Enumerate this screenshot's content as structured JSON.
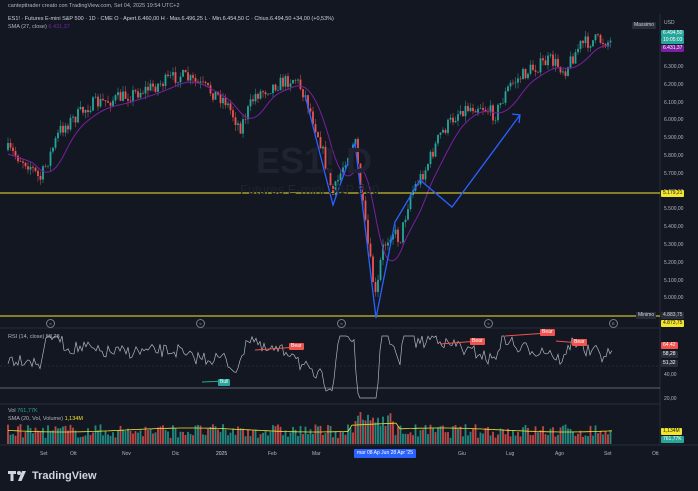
{
  "header": {
    "title": "cantepttrader creato con TradingView.com, Set 04, 2025 19:54 UTC+2",
    "symbol_line": "ES1! · Futures E-mini S&P 500 · 1D · CME  O · Apert.6.460,00  H · Mas.6.496,25  L · Min.6.454,50  C · Chius.6.494,50  +34,00 (+0,53%)",
    "sma_label": "SMA (27, close)",
    "sma_value": "6.431,37"
  },
  "watermark": {
    "symbol": "ES1! D",
    "name": "Futures E-mini S&P 500"
  },
  "price_axis": {
    "currency": "USD",
    "ticks": [
      "6.300,00",
      "6.200,00",
      "6.100,00",
      "6.000,00",
      "5.900,00",
      "5.800,00",
      "5.700,00",
      "5.600,00",
      "5.500,00",
      "5.400,00",
      "5.300,00",
      "5.200,00",
      "5.100,00",
      "5.000,00",
      "4.900,00"
    ],
    "massimo_label": "Massimo",
    "minimo_label": "Minimo",
    "last_price": "6.494,50",
    "countdown": "10:05:03",
    "sma_tag": "6.431,37",
    "line_5179": "5.179,21",
    "minimo_value": "4.883,75",
    "line_4873": "4.873,75"
  },
  "rsi": {
    "label": "RSI (14, close)",
    "value": "58,28",
    "tags": [
      "64,42",
      "58,28",
      "51,32"
    ],
    "ticks": [
      "40,00",
      "20,00"
    ],
    "markers": {
      "bull": "Bull",
      "bear1": "Bear",
      "bear2": "Bear",
      "bear3": "Bear",
      "bear4": "Bear"
    }
  },
  "volume": {
    "label": "Vol",
    "value": "761,77K",
    "sma_label": "SMA (20, Vol, Volume)",
    "sma_value": "1,134M",
    "tags": [
      "1,134M",
      "761,77K"
    ]
  },
  "time_axis": {
    "months": [
      "Set",
      "Ott",
      "Nov",
      "Dic",
      "2025",
      "Feb",
      "Mar",
      "Giu",
      "Lug",
      "Ago",
      "Set",
      "Ott"
    ],
    "highlight": "mar 08 Ap   Jun 28 Apr '25"
  },
  "colors": {
    "up": "#26a69a",
    "down": "#ef5350",
    "sma": "#7b1fa2",
    "level": "#f5e52a",
    "pattern": "#2962ff",
    "rsi": "#b2b5be",
    "bg": "#131722"
  },
  "branding": {
    "logo": "TradingView"
  }
}
